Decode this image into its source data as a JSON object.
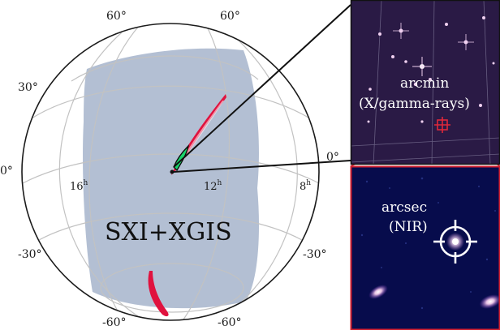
{
  "sky_map": {
    "dec_labels": {
      "top_left": "60°",
      "top_right": "60°",
      "mid_left": "30°",
      "left": "0°",
      "bottom_left_low": "-30°",
      "bottom_left": "-60°",
      "bottom_right_low": "-30°",
      "bottom_right": "-60°",
      "right": "0°"
    },
    "ra_labels": [
      {
        "hour": "16",
        "sup": "h"
      },
      {
        "hour": "12",
        "sup": "h"
      },
      {
        "hour": "8",
        "sup": "h"
      }
    ],
    "instrument_label": "SXI+XGIS",
    "colors": {
      "coverage_fill": "#b3bfd3",
      "error_region": "#e0123e",
      "error_highlight": "#19d36a",
      "grid": "#c2c2c2"
    }
  },
  "inset_top": {
    "line1": "arcmin",
    "line2": "(X/gamma-rays)",
    "background": "#2a1a45"
  },
  "inset_bottom": {
    "line1": "arcsec",
    "line2": "(NIR)",
    "background": "#070c4c"
  }
}
